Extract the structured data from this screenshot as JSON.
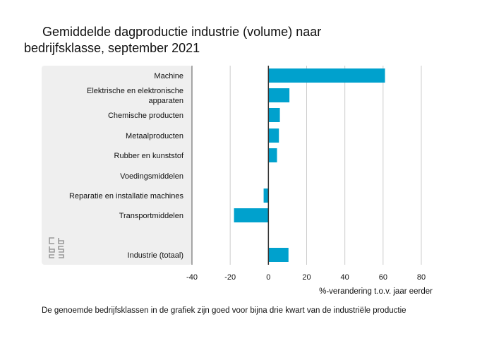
{
  "title_line1": "Gemiddelde dagproductie industrie (volume) naar",
  "title_line2": "bedrijfsklasse, september 2021",
  "footnote": "De genoemde bedrijfsklassen in de grafiek zijn goed voor bijna drie kwart van de industriële productie",
  "logo_icon": "cbs-logo-icon",
  "colors": {
    "bar": "#00a1cd",
    "panel": "#efefef",
    "grid": "#cccccc",
    "axis": "#333333"
  },
  "chart_data": {
    "type": "bar",
    "orientation": "horizontal",
    "categories": [
      [
        "Machine"
      ],
      [
        "Elektrische en elektronische",
        "apparaten"
      ],
      [
        "Chemische producten"
      ],
      [
        "Metaalproducten"
      ],
      [
        "Rubber en kunststof"
      ],
      [
        "Voedingsmiddelen"
      ],
      [
        "Reparatie en installatie machines"
      ],
      [
        "Transportmiddelen"
      ],
      [
        "Industrie (totaal)"
      ]
    ],
    "values": [
      61,
      11,
      6,
      5.5,
      4.5,
      0,
      -2.5,
      -18,
      10.5
    ],
    "xlim": [
      -40,
      80
    ],
    "xticks": [
      -40,
      -20,
      0,
      20,
      40,
      60,
      80
    ],
    "xlabel": "%-verandering t.o.v. jaar eerder",
    "grid": true
  }
}
